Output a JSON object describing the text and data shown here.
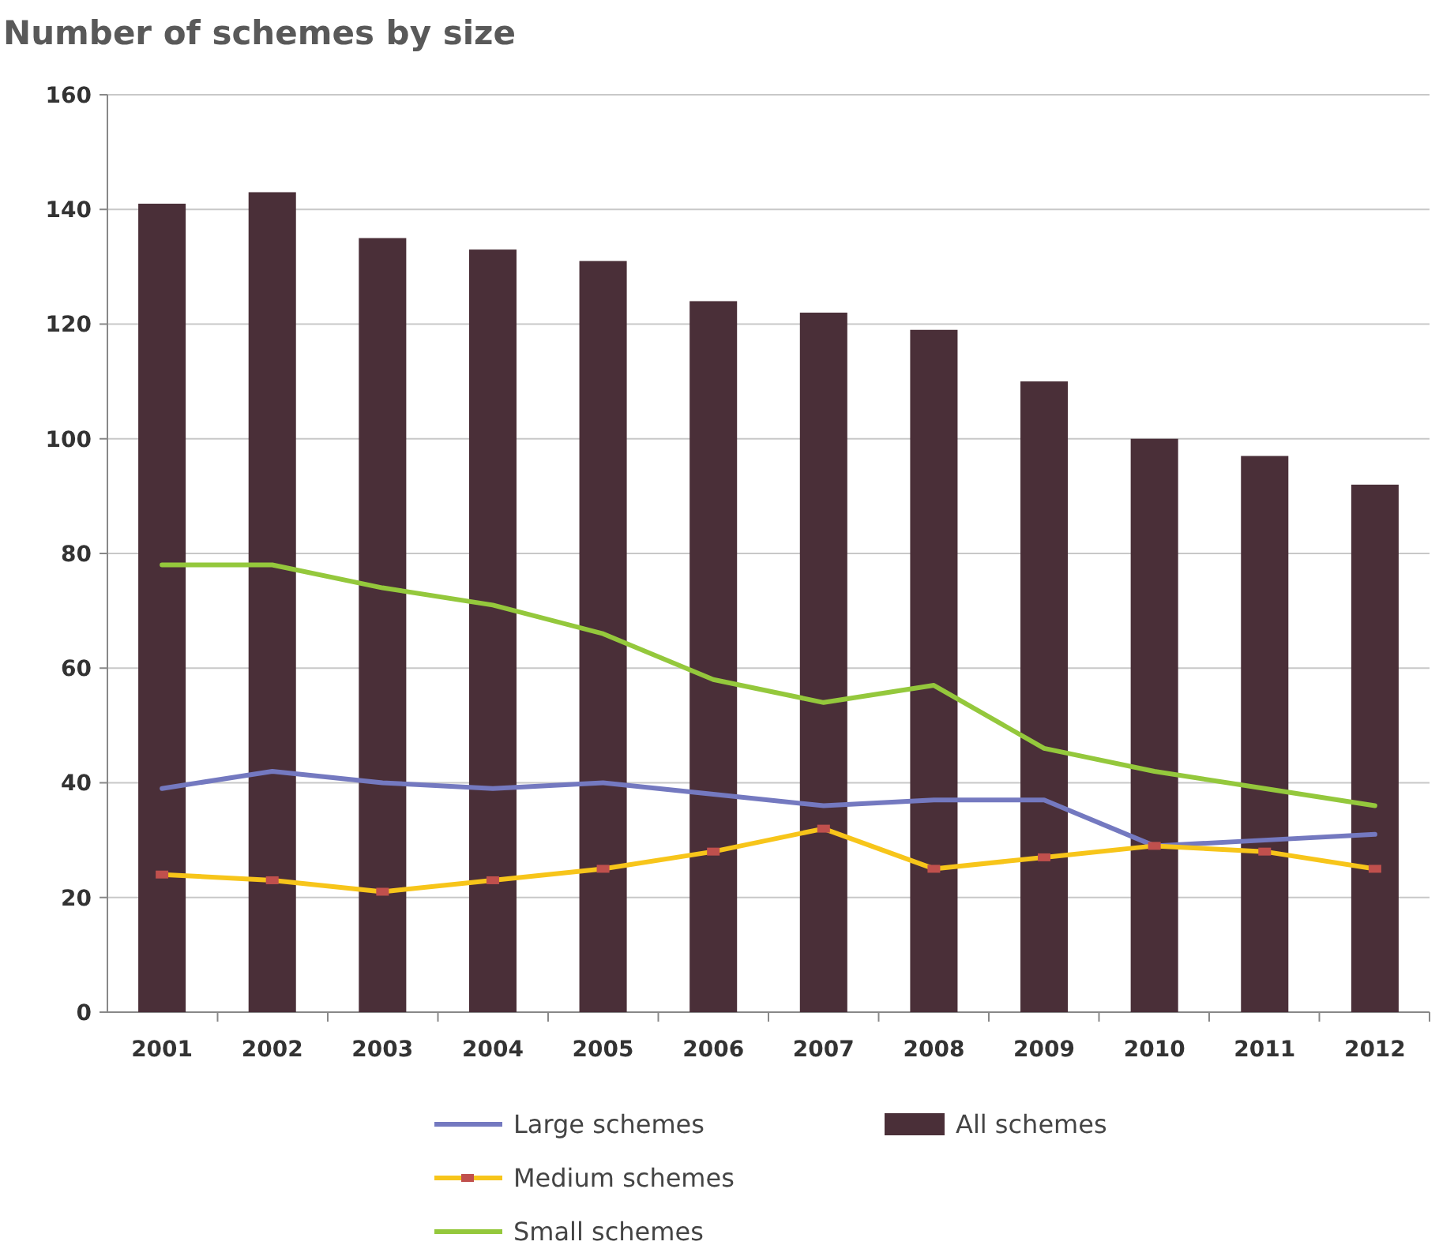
{
  "chart_data": {
    "type": "bar",
    "title": "Number of schemes by size",
    "categories": [
      "2001",
      "2002",
      "2003",
      "2004",
      "2005",
      "2006",
      "2007",
      "2008",
      "2009",
      "2010",
      "2011",
      "2012"
    ],
    "ylim": [
      0,
      160
    ],
    "yticks": [
      0,
      20,
      40,
      60,
      80,
      100,
      120,
      140,
      160
    ],
    "grid": "y",
    "legend": "bottom",
    "series": [
      {
        "name": "All schemes",
        "color": "#4a2f38",
        "values": [
          141,
          143,
          135,
          133,
          131,
          124,
          122,
          119,
          110,
          100,
          97,
          92
        ]
      },
      {
        "name": "Large schemes",
        "type": "line",
        "color": "#7479c0",
        "marker": "none",
        "values": [
          39,
          42,
          40,
          39,
          40,
          38,
          36,
          37,
          37,
          29,
          30,
          31
        ]
      },
      {
        "name": "Medium schemes",
        "type": "line",
        "color": "#f7c51a",
        "marker": "square",
        "values": [
          24,
          23,
          21,
          23,
          25,
          28,
          32,
          25,
          27,
          29,
          28,
          25
        ]
      },
      {
        "name": "Small schemes",
        "type": "line",
        "color": "#94c83c",
        "marker": "none",
        "values": [
          78,
          78,
          74,
          71,
          66,
          58,
          54,
          57,
          46,
          42,
          39,
          36
        ]
      }
    ]
  }
}
